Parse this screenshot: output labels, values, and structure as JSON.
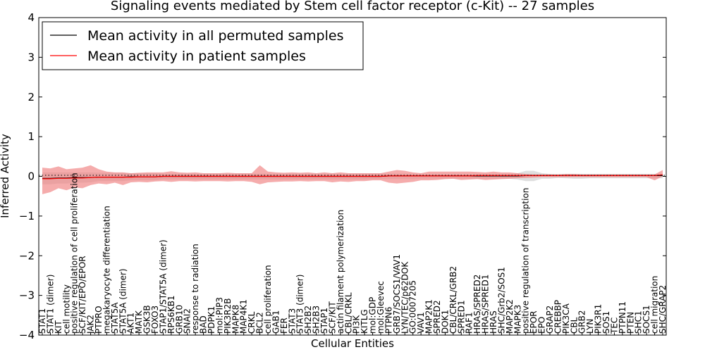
{
  "chart_data": {
    "type": "line",
    "title": "Signaling events mediated by Stem cell factor receptor (c-Kit) -- 27 samples",
    "xlabel": "Cellular Entities",
    "ylabel": "Inferred Activity",
    "ylim": [
      -4,
      4
    ],
    "yticks": [
      4,
      3,
      2,
      1,
      0,
      -1,
      -2,
      -3,
      -4
    ],
    "ytick_labels": [
      "4",
      "3",
      "2",
      "1",
      "0",
      "−1",
      "−2",
      "−3",
      "−4"
    ],
    "legend": {
      "position": "top-left",
      "entries": [
        {
          "label": "Mean activity in all permuted samples",
          "color": "#000000"
        },
        {
          "label": "Mean activity in patient samples",
          "color": "#ff0000"
        }
      ]
    },
    "categories": [
      "STAT1",
      "STAT1 (dimer)",
      "KIT",
      "cell motility",
      "positive regulation of cell proliferation",
      "SCF/KIT/EPO/EPOR",
      "JAK2",
      "PTPRO",
      "megakaryocyte differentiation",
      "STAT5A",
      "STAT5A (dimer)",
      "AKT1",
      "MATK",
      "GSK3B",
      "FOXO3",
      "STAP1/STAT5A (dimer)",
      "RPS6KB1",
      "GRB10",
      "SNAI2",
      "response to radiation",
      "BAD",
      "PDPK1",
      "mol:PIP3",
      "PIK3R2B",
      "MAPK8",
      "MAP4K1",
      "CRKL",
      "BCL2",
      "cell proliferation",
      "GAB1",
      "FER",
      "STAT3",
      "STAT3 (dimer)",
      "SH2B2",
      "SH2B3",
      "STAP1",
      "SCF/KIT",
      "actin filament polymerization",
      "CBL/CRKL",
      "PI3K",
      "KITLG",
      "mol:GDP",
      "mol:Gleevec",
      "PTPN6",
      "GRB7/SOCS1/VAV1",
      "LYN/TEC/p62DOK",
      "GO:0007205",
      "VAV1",
      "MAP2K1",
      "SPRED2",
      "DOK1",
      "CBL/CRKL/GRB2",
      "SPRED1",
      "RAF1",
      "HRAS/SPRED2",
      "HRAS/SPRED1",
      "HRAS",
      "SHC/Grb2/SOS1",
      "MAP2K2",
      "MAPK3",
      "positive regulation of transcription",
      "EPOR",
      "EPO",
      "GRAP2",
      "CREBBP",
      "PIK3CA",
      "CBL",
      "GRB2",
      "LYN",
      "PIK3R1",
      "SOS1",
      "TEC",
      "PTPN11",
      "PTEN",
      "SHC1",
      "SOCS1",
      "cell migration",
      "SHC/GRAP2"
    ],
    "series": [
      {
        "name": "Mean activity in patient samples",
        "values": [
          -0.06,
          -0.06,
          -0.05,
          -0.05,
          -0.04,
          -0.04,
          -0.03,
          -0.02,
          -0.02,
          -0.02,
          -0.02,
          -0.02,
          -0.01,
          -0.01,
          -0.01,
          0.0,
          0.0,
          0.0,
          0.0,
          0.0,
          0.0,
          0.0,
          0.0,
          0.0,
          0.0,
          0.0,
          0.0,
          0.0,
          0.0,
          0.0,
          0.0,
          0.0,
          0.0,
          0.0,
          0.0,
          0.0,
          0.0,
          0.0,
          0.0,
          0.0,
          0.0,
          0.0,
          0.0,
          0.01,
          0.01,
          0.01,
          0.01,
          0.01,
          0.01,
          0.01,
          0.01,
          0.01,
          0.01,
          0.01,
          0.02,
          0.02,
          0.02,
          0.02,
          0.02,
          0.02,
          0.02,
          0.02,
          0.02,
          0.02,
          0.02,
          0.02,
          0.02,
          0.02,
          0.02,
          0.02,
          0.02,
          0.02,
          0.02,
          0.02,
          0.02,
          0.02,
          0.02,
          0.04
        ],
        "lower": [
          -0.45,
          -0.4,
          -0.3,
          -0.35,
          -0.28,
          -0.3,
          -0.22,
          -0.18,
          -0.2,
          -0.16,
          -0.22,
          -0.15,
          -0.14,
          -0.15,
          -0.13,
          -0.12,
          -0.14,
          -0.12,
          -0.12,
          -0.13,
          -0.12,
          -0.12,
          -0.12,
          -0.13,
          -0.12,
          -0.12,
          -0.14,
          -0.2,
          -0.15,
          -0.14,
          -0.13,
          -0.13,
          -0.12,
          -0.13,
          -0.12,
          -0.12,
          -0.15,
          -0.13,
          -0.14,
          -0.12,
          -0.12,
          -0.1,
          -0.1,
          -0.16,
          -0.18,
          -0.16,
          -0.14,
          -0.1,
          -0.1,
          -0.09,
          -0.07,
          -0.06,
          -0.09,
          -0.08,
          -0.07,
          -0.09,
          -0.08,
          -0.07,
          -0.06,
          -0.05,
          -0.04,
          -0.03,
          -0.02,
          -0.02,
          -0.02,
          -0.02,
          -0.02,
          -0.02,
          -0.02,
          -0.02,
          -0.02,
          -0.02,
          -0.02,
          -0.02,
          -0.02,
          -0.02,
          -0.1,
          0.0
        ],
        "upper": [
          0.22,
          0.2,
          0.25,
          0.18,
          0.2,
          0.22,
          0.28,
          0.18,
          0.12,
          0.1,
          0.1,
          0.08,
          0.09,
          0.1,
          0.1,
          0.1,
          0.13,
          0.1,
          0.09,
          0.1,
          0.08,
          0.08,
          0.08,
          0.09,
          0.08,
          0.08,
          0.08,
          0.28,
          0.12,
          0.1,
          0.09,
          0.1,
          0.09,
          0.1,
          0.08,
          0.1,
          0.08,
          0.1,
          0.08,
          0.08,
          0.08,
          0.08,
          0.08,
          0.12,
          0.16,
          0.14,
          0.1,
          0.08,
          0.12,
          0.12,
          0.12,
          0.12,
          0.12,
          0.12,
          0.11,
          0.1,
          0.12,
          0.1,
          0.1,
          0.08,
          0.06,
          0.05,
          0.05,
          0.05,
          0.05,
          0.06,
          0.06,
          0.05,
          0.05,
          0.05,
          0.05,
          0.05,
          0.05,
          0.05,
          0.05,
          0.05,
          0.05,
          0.16
        ]
      },
      {
        "name": "Mean activity in all permuted samples",
        "values": [
          -0.05,
          -0.05,
          -0.04,
          -0.04,
          -0.03,
          -0.03,
          -0.03,
          -0.02,
          -0.02,
          -0.02,
          -0.02,
          -0.01,
          -0.01,
          -0.01,
          -0.01,
          0.0,
          0.0,
          0.0,
          0.0,
          0.0,
          0.0,
          0.0,
          0.0,
          0.0,
          0.0,
          0.0,
          0.0,
          0.0,
          0.0,
          0.0,
          0.0,
          0.0,
          0.0,
          0.0,
          0.0,
          0.0,
          0.0,
          0.0,
          0.0,
          0.0,
          0.0,
          0.0,
          0.0,
          0.01,
          0.01,
          0.01,
          0.01,
          0.01,
          0.01,
          0.01,
          0.01,
          0.01,
          0.01,
          0.01,
          0.01,
          0.01,
          0.01,
          0.01,
          0.01,
          0.01,
          0.02,
          0.02,
          0.02,
          0.02,
          0.02,
          0.02,
          0.02,
          0.02,
          0.02,
          0.02,
          0.02,
          0.02,
          0.02,
          0.02,
          0.02,
          0.02,
          0.02,
          0.02
        ],
        "lower": [
          -0.2,
          -0.2,
          -0.18,
          -0.18,
          -0.16,
          -0.16,
          -0.15,
          -0.12,
          -0.12,
          -0.12,
          -0.12,
          -0.1,
          -0.1,
          -0.1,
          -0.1,
          -0.08,
          -0.08,
          -0.08,
          -0.08,
          -0.08,
          -0.08,
          -0.08,
          -0.08,
          -0.08,
          -0.08,
          -0.08,
          -0.08,
          -0.08,
          -0.08,
          -0.08,
          -0.08,
          -0.08,
          -0.08,
          -0.08,
          -0.08,
          -0.08,
          -0.08,
          -0.08,
          -0.08,
          -0.08,
          -0.08,
          -0.07,
          -0.07,
          -0.07,
          -0.07,
          -0.07,
          -0.07,
          -0.06,
          -0.06,
          -0.06,
          -0.06,
          -0.06,
          -0.06,
          -0.06,
          -0.06,
          -0.06,
          -0.06,
          -0.06,
          -0.06,
          -0.08,
          -0.12,
          -0.12,
          -0.06,
          -0.06,
          -0.04,
          -0.05,
          -0.06,
          -0.06,
          -0.05,
          -0.05,
          -0.05,
          -0.05,
          -0.05,
          -0.05,
          -0.05,
          -0.05,
          -0.05,
          -0.05
        ],
        "upper": [
          0.1,
          0.1,
          0.1,
          0.1,
          0.1,
          0.1,
          0.1,
          0.09,
          0.09,
          0.09,
          0.09,
          0.08,
          0.08,
          0.08,
          0.08,
          0.07,
          0.07,
          0.07,
          0.07,
          0.07,
          0.07,
          0.07,
          0.07,
          0.07,
          0.07,
          0.07,
          0.07,
          0.07,
          0.07,
          0.07,
          0.07,
          0.07,
          0.07,
          0.07,
          0.07,
          0.07,
          0.07,
          0.07,
          0.07,
          0.07,
          0.07,
          0.07,
          0.07,
          0.07,
          0.07,
          0.07,
          0.07,
          0.06,
          0.06,
          0.06,
          0.06,
          0.06,
          0.06,
          0.06,
          0.06,
          0.06,
          0.06,
          0.06,
          0.06,
          0.08,
          0.14,
          0.14,
          0.08,
          0.06,
          0.05,
          0.06,
          0.06,
          0.06,
          0.06,
          0.06,
          0.06,
          0.06,
          0.06,
          0.06,
          0.06,
          0.06,
          0.06,
          0.06
        ]
      }
    ]
  }
}
